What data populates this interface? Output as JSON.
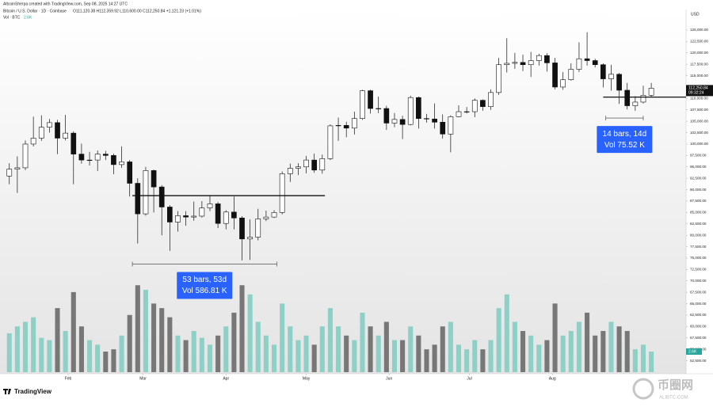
{
  "chart_data": {
    "type": "candlestick",
    "header": "AltcoinSherpa created with TradingView.com, Sep 08, 2025 14:27 UTC",
    "symbol": "Bitcoin / U.S. Dollar · 1D · Coinbase",
    "ohlc_text": "O111,120.38 H112,359.92 L110,600.00 C112,250.84 +1,121.23 (+1.01%)",
    "volume_text": "Vol · BTC",
    "volume_value_label": "2.6K",
    "currency": "USD",
    "branding": "TradingView",
    "watermark": [
      "币圈网",
      "ALIBTC.COM"
    ],
    "x": [
      "2025-01-10",
      "2025-01-13",
      "2025-01-16",
      "2025-01-19",
      "2025-01-22",
      "2025-01-25",
      "2025-01-28",
      "2025-01-31",
      "2025-02-03",
      "2025-02-06",
      "2025-02-09",
      "2025-02-12",
      "2025-02-15",
      "2025-02-18",
      "2025-02-21",
      "2025-02-24",
      "2025-02-27",
      "2025-03-02",
      "2025-03-05",
      "2025-03-08",
      "2025-03-11",
      "2025-03-14",
      "2025-03-17",
      "2025-03-20",
      "2025-03-23",
      "2025-03-26",
      "2025-03-29",
      "2025-04-01",
      "2025-04-04",
      "2025-04-07",
      "2025-04-10",
      "2025-04-13",
      "2025-04-16",
      "2025-04-19",
      "2025-04-22",
      "2025-04-25",
      "2025-04-28",
      "2025-05-01",
      "2025-05-04",
      "2025-05-07",
      "2025-05-10",
      "2025-05-13",
      "2025-05-16",
      "2025-05-19",
      "2025-05-22",
      "2025-05-25",
      "2025-05-28",
      "2025-05-31",
      "2025-06-03",
      "2025-06-06",
      "2025-06-09",
      "2025-06-12",
      "2025-06-15",
      "2025-06-18",
      "2025-06-21",
      "2025-06-24",
      "2025-06-27",
      "2025-06-30",
      "2025-07-03",
      "2025-07-06",
      "2025-07-09",
      "2025-07-12",
      "2025-07-15",
      "2025-07-18",
      "2025-07-21",
      "2025-07-24",
      "2025-07-27",
      "2025-07-30",
      "2025-08-02",
      "2025-08-05",
      "2025-08-08",
      "2025-08-11",
      "2025-08-14",
      "2025-08-17",
      "2025-08-20",
      "2025-08-23",
      "2025-08-26",
      "2025-08-29",
      "2025-09-01",
      "2025-09-04",
      "2025-09-07"
    ],
    "open": [
      93000,
      94500,
      94800,
      100000,
      101300,
      103700,
      104700,
      101300,
      102400,
      97800,
      96500,
      96500,
      97800,
      97500,
      95500,
      96100,
      91400,
      84700,
      94200,
      90600,
      86200,
      82900,
      84300,
      84000,
      84200,
      86000,
      86900,
      82600,
      85100,
      83800,
      79200,
      79600,
      83600,
      84000,
      85000,
      93500,
      94700,
      95000,
      96500,
      94300,
      96800,
      104000,
      104100,
      103500,
      105600,
      111700,
      107800,
      107800,
      104600,
      105400,
      104300,
      110200,
      105600,
      105500,
      104800,
      102200,
      106000,
      107100,
      107100,
      109600,
      108200,
      111300,
      117400,
      117700,
      117900,
      117400,
      118300,
      119400,
      117800,
      112500,
      114100,
      116400,
      118700,
      118300,
      117400,
      114300,
      115300,
      111800,
      108400,
      109200,
      110700
    ],
    "high": [
      95800,
      97300,
      100800,
      106000,
      106300,
      105500,
      105300,
      106400,
      102800,
      100100,
      98300,
      98600,
      98500,
      97900,
      99500,
      96500,
      92500,
      95000,
      94400,
      91000,
      86600,
      85300,
      85300,
      87400,
      87500,
      88700,
      87300,
      85500,
      88500,
      84200,
      83500,
      85800,
      85400,
      85500,
      94000,
      95700,
      95800,
      97400,
      97900,
      97700,
      104300,
      105800,
      104900,
      107100,
      111900,
      111900,
      110400,
      108400,
      106800,
      106200,
      110600,
      110400,
      106600,
      108900,
      106500,
      106300,
      108500,
      108100,
      110000,
      109800,
      112000,
      118900,
      123200,
      120000,
      119600,
      120200,
      119800,
      119900,
      118900,
      115800,
      117700,
      122300,
      124500,
      118700,
      117700,
      117400,
      115600,
      113400,
      110500,
      112800,
      113400
    ],
    "low": [
      91200,
      89300,
      94300,
      99500,
      100700,
      102500,
      97800,
      100800,
      91200,
      95700,
      95300,
      94100,
      96500,
      93400,
      94800,
      88500,
      78200,
      84300,
      85000,
      80000,
      76600,
      80800,
      82100,
      83200,
      83900,
      85300,
      81600,
      81300,
      81300,
      74500,
      74600,
      78900,
      83100,
      83800,
      84600,
      91700,
      93200,
      93600,
      93700,
      93500,
      96500,
      100700,
      101500,
      102100,
      105300,
      106700,
      106800,
      103100,
      103700,
      101100,
      104100,
      103400,
      104700,
      103400,
      101200,
      98200,
      105900,
      106700,
      105900,
      107300,
      107500,
      110800,
      115700,
      116500,
      116000,
      114700,
      117200,
      115900,
      112000,
      111900,
      113900,
      115800,
      117200,
      116800,
      112400,
      111700,
      108800,
      107600,
      107300,
      108900,
      110300
    ],
    "close": [
      94500,
      94800,
      100000,
      101300,
      103700,
      104700,
      101300,
      102400,
      97800,
      96500,
      96500,
      97800,
      97500,
      95500,
      96100,
      91400,
      84700,
      94200,
      90600,
      86200,
      82900,
      84300,
      84000,
      84200,
      86000,
      86900,
      82600,
      85100,
      83800,
      79200,
      79600,
      83600,
      84000,
      85000,
      93500,
      94700,
      95000,
      96500,
      94300,
      96800,
      104000,
      104100,
      103500,
      105600,
      111700,
      107800,
      107800,
      104600,
      105400,
      104300,
      110200,
      105600,
      105500,
      104800,
      102200,
      106000,
      107100,
      107100,
      109600,
      108200,
      111300,
      117400,
      117700,
      117900,
      117400,
      118300,
      119400,
      117800,
      112500,
      114100,
      116400,
      118700,
      118300,
      117400,
      114300,
      115300,
      111800,
      108400,
      109200,
      110700,
      112250
    ],
    "volume": [
      17,
      20,
      22,
      24,
      15,
      14,
      28,
      18,
      35,
      20,
      14,
      12,
      9,
      10,
      16,
      25,
      38,
      36,
      30,
      28,
      24,
      16,
      14,
      18,
      15,
      12,
      16,
      20,
      26,
      38,
      34,
      22,
      16,
      12,
      30,
      20,
      14,
      16,
      12,
      20,
      28,
      20,
      16,
      14,
      26,
      20,
      16,
      22,
      14,
      14,
      20,
      16,
      10,
      12,
      20,
      22,
      12,
      10,
      14,
      10,
      14,
      28,
      34,
      22,
      18,
      16,
      12,
      14,
      30,
      16,
      18,
      22,
      26,
      16,
      18,
      22,
      20,
      18,
      10,
      12,
      9
    ],
    "volume_ylim": [
      0,
      45
    ],
    "colors": {
      "up": "#ffffff",
      "down": "#111111",
      "volume_up": "#8fd0c6",
      "volume_down": "#777777"
    },
    "xlim": [
      "2025-01-08",
      "2025-09-20"
    ],
    "xticks": [
      {
        "value": "2025-02-01",
        "label": "Feb"
      },
      {
        "value": "2025-03-01",
        "label": "Mar"
      },
      {
        "value": "2025-04-01",
        "label": "Apr"
      },
      {
        "value": "2025-05-01",
        "label": "May"
      },
      {
        "value": "2025-06-01",
        "label": "Jun"
      },
      {
        "value": "2025-07-01",
        "label": "Jul"
      },
      {
        "value": "2025-08-01",
        "label": "Aug"
      }
    ],
    "ylim": [
      50000,
      129500
    ],
    "yticks": [
      {
        "value": 52500,
        "label": "52,500.00"
      },
      {
        "value": 55000,
        "label": "55,000.00"
      },
      {
        "value": 57500,
        "label": "57,500.00"
      },
      {
        "value": 60000,
        "label": "60,000.00"
      },
      {
        "value": 62500,
        "label": "62,500.00"
      },
      {
        "value": 65000,
        "label": "65,000.00"
      },
      {
        "value": 67500,
        "label": "67,500.00"
      },
      {
        "value": 70000,
        "label": "70,000.00"
      },
      {
        "value": 72500,
        "label": "72,500.00"
      },
      {
        "value": 75000,
        "label": "75,000.00"
      },
      {
        "value": 77500,
        "label": "77,500.00"
      },
      {
        "value": 80000,
        "label": "80,000.00"
      },
      {
        "value": 82500,
        "label": "82,500.00"
      },
      {
        "value": 85000,
        "label": "85,000.00"
      },
      {
        "value": 87500,
        "label": "87,500.00"
      },
      {
        "value": 90000,
        "label": "90,000.00"
      },
      {
        "value": 92500,
        "label": "92,500.00"
      },
      {
        "value": 95000,
        "label": "95,000.00"
      },
      {
        "value": 97500,
        "label": "97,500.00"
      },
      {
        "value": 100000,
        "label": "100,000.00"
      },
      {
        "value": 102500,
        "label": "102,500.00"
      },
      {
        "value": 105000,
        "label": "105,000.00"
      },
      {
        "value": 107500,
        "label": "107,500.00"
      },
      {
        "value": 110000,
        "label": "110,000.00"
      },
      {
        "value": 112500,
        "label": "112,500.00"
      },
      {
        "value": 115000,
        "label": "115,000.00"
      },
      {
        "value": 117500,
        "label": "117,500.00"
      },
      {
        "value": 120000,
        "label": "120,000.00"
      },
      {
        "value": 122500,
        "label": "122,500.00"
      },
      {
        "value": 125000,
        "label": "125,000.00"
      }
    ],
    "last_price": {
      "value": 112250.84,
      "label": "112,250.84",
      "countdown": "09:32:24"
    },
    "levels": [
      {
        "value": 88700,
        "from": "2025-02-25",
        "to": "2025-05-08"
      },
      {
        "value": 110300,
        "from": "2025-08-20",
        "to": "2025-09-20"
      }
    ],
    "measures": [
      {
        "from": "2025-02-25",
        "to": "2025-04-20",
        "value": 73700,
        "lines": [
          "53 bars, 53d",
          "Vol 586.81 K"
        ]
      },
      {
        "from": "2025-08-21",
        "to": "2025-09-04",
        "value": 105700,
        "lines": [
          "14 bars, 14d",
          "Vol 75.52 K"
        ]
      }
    ]
  }
}
